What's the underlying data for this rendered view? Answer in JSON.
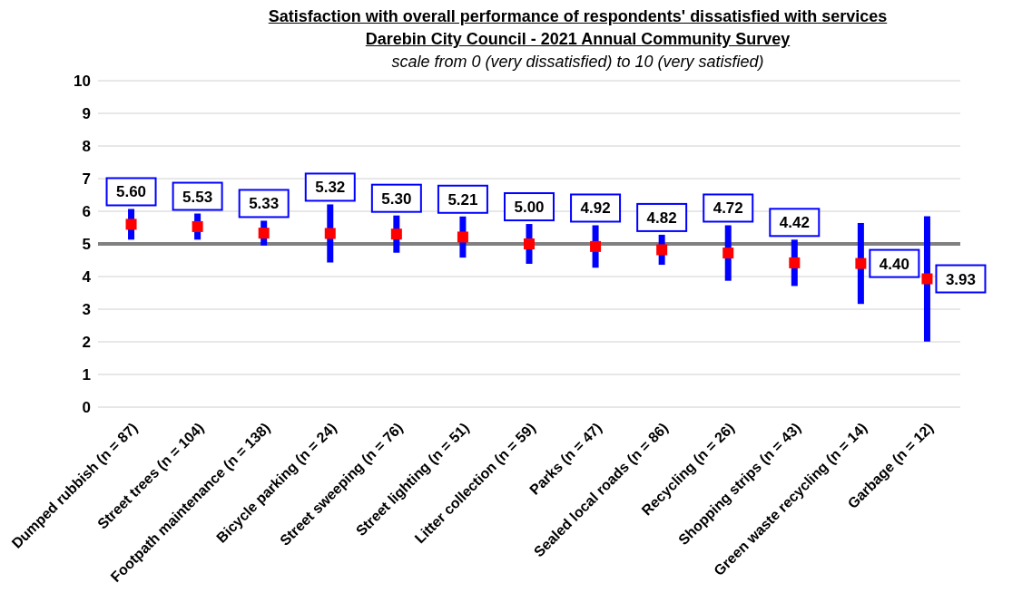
{
  "chart_data": {
    "type": "scatter",
    "title": "Satisfaction with overall performance of respondents' dissatisfied with services",
    "subtitle": "Darebin City Council - 2021 Annual Community Survey",
    "annotations": [
      "scale from 0 (very dissatisfied) to 10 (very satisfied)"
    ],
    "categories": [
      "Dumped rubbish (n = 87)",
      "Street trees (n = 104)",
      "Footpath maintenance (n = 138)",
      "Bicycle parking (n = 24)",
      "Street sweeping (n = 76)",
      "Street lighting (n = 51)",
      "Litter collection (n = 59)",
      "Parks (n = 47)",
      "Sealed local roads (n = 86)",
      "Recycling (n = 26)",
      "Shopping strips (n = 43)",
      "Green waste recycling (n = 14)",
      "Garbage (n = 12)"
    ],
    "series": [
      {
        "color": "#ff0000",
        "values": [
          5.6,
          5.53,
          5.33,
          5.32,
          5.3,
          5.21,
          5.0,
          4.92,
          4.82,
          4.72,
          4.42,
          4.4,
          3.93
        ],
        "errors": [
          0.47,
          0.4,
          0.38,
          0.89,
          0.57,
          0.63,
          0.61,
          0.65,
          0.46,
          0.85,
          0.71,
          1.24,
          1.92
        ],
        "value_labels": [
          "5.60",
          "5.53",
          "5.33",
          "5.32",
          "5.30",
          "5.21",
          "5.00",
          "4.92",
          "4.82",
          "4.72",
          "4.42",
          "4.40",
          "3.93"
        ]
      }
    ],
    "marker": "square",
    "grid": "y",
    "ylim": [
      0,
      10
    ],
    "yticks": [
      0,
      1,
      2,
      3,
      4,
      5,
      6,
      7,
      8,
      9,
      10
    ],
    "ref_lines": [
      {
        "axis": "y",
        "value": 5,
        "label": null,
        "color": "#808080"
      }
    ]
  }
}
